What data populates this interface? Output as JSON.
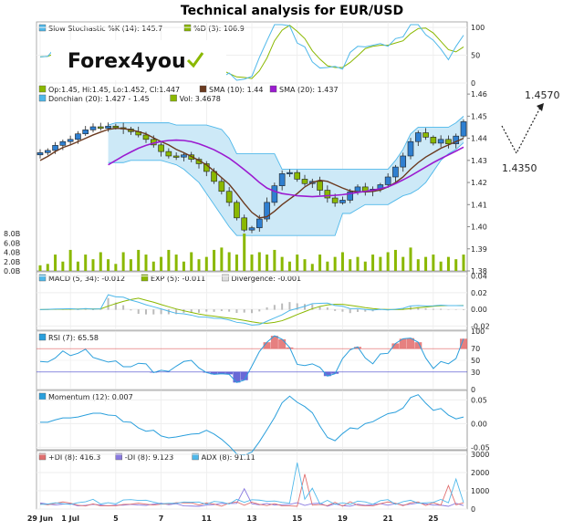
{
  "title": "Technical analysis for EUR/USD",
  "logo_text": "Forex4you",
  "annotation": {
    "high": "1.4570",
    "low": "1.4350"
  },
  "colors": {
    "price": "#8ab800",
    "candle_up": "#2f7fd0",
    "candle_down": "#8ab800",
    "donchian_fill": "#cde9f7",
    "donchian_line": "#4fb8ea",
    "sma10": "#6b3a1f",
    "sma20": "#9b1bd0",
    "volume": "#8ab800",
    "stoch_k": "#4fb8ea",
    "stoch_d": "#8ab800",
    "macd_line": "#4fb8ea",
    "exp_line": "#8ab800",
    "rsi_line": "#2a9fdc",
    "rsi_high": "#e06060",
    "rsi_low": "#4444cc",
    "pdi": "#e07070",
    "mdi": "#8a7ae0",
    "adx": "#4fb8ea"
  },
  "chart_data": [
    {
      "type": "line",
      "panel": "stochastic",
      "legend": [
        "Slow Stochastic %K (14): 145.7",
        "%D (3): 106.9"
      ],
      "y_ticks": [
        "100",
        "50",
        "0"
      ],
      "ylim": [
        0,
        110
      ],
      "series": [
        {
          "name": "Slow Stochastic %K (14)",
          "values": []
        },
        {
          "name": "%D (3)",
          "values": []
        }
      ]
    },
    {
      "type": "bar",
      "panel": "price",
      "legend": [
        "Op:1.45, Hi:1.45, Lo:1.452, Cl:1.447",
        "SMA (10): 1.44",
        "SMA (20): 1.437",
        "Donchian (20): 1.427 - 1.45",
        "Vol: 3.4678"
      ],
      "y_ticks": [
        "1.46",
        "1.45",
        "1.44",
        "1.43",
        "1.42",
        "1.41",
        "1.40",
        "1.39",
        "1.38"
      ],
      "ylim": [
        1.38,
        1.465
      ],
      "vol_ticks": [
        "8.0B",
        "6.0B",
        "4.0B",
        "2.0B",
        "0.0B"
      ],
      "close": [
        1.4335,
        1.4345,
        1.4368,
        1.4385,
        1.4395,
        1.442,
        1.4438,
        1.4452,
        1.4445,
        1.4455,
        1.4448,
        1.4442,
        1.443,
        1.4415,
        1.4395,
        1.437,
        1.434,
        1.432,
        1.4315,
        1.4325,
        1.4305,
        1.4285,
        1.425,
        1.4205,
        1.416,
        1.411,
        1.404,
        1.3985,
        1.3995,
        1.4035,
        1.411,
        1.4185,
        1.424,
        1.4245,
        1.4215,
        1.4195,
        1.4205,
        1.4165,
        1.413,
        1.4108,
        1.412,
        1.4158,
        1.418,
        1.416,
        1.417,
        1.419,
        1.4225,
        1.427,
        1.432,
        1.4385,
        1.4425,
        1.4405,
        1.4378,
        1.4395,
        1.4375,
        1.441,
        1.4475
      ],
      "volume": [
        1.2,
        1.5,
        3.5,
        2.0,
        4.5,
        2.0,
        3.5,
        2.5,
        4.0,
        2.5,
        1.5,
        4.0,
        2.5,
        4.5,
        3.5,
        2.0,
        3.0,
        4.5,
        3.5,
        2.0,
        4.0,
        2.5,
        3.0,
        4.5,
        5.0,
        4.0,
        3.5,
        8.0,
        3.5,
        4.0,
        3.5,
        4.5,
        3.0,
        2.0,
        3.5,
        2.5,
        1.5,
        3.5,
        2.0,
        3.0,
        4.0,
        2.5,
        3.0,
        2.0,
        3.5,
        3.0,
        4.0,
        4.5,
        3.0,
        5.0,
        2.5,
        3.0,
        3.5,
        2.0,
        3.0,
        2.5,
        3.5
      ],
      "sma10": [
        1.43,
        1.4318,
        1.434,
        1.4358,
        1.437,
        1.4385,
        1.44,
        1.4415,
        1.4428,
        1.444,
        1.4445,
        1.4444,
        1.4438,
        1.443,
        1.442,
        1.4402,
        1.4385,
        1.437,
        1.435,
        1.4335,
        1.4318,
        1.43,
        1.428,
        1.4252,
        1.4222,
        1.4192,
        1.415,
        1.4105,
        1.4065,
        1.404,
        1.4045,
        1.407,
        1.41,
        1.4125,
        1.415,
        1.418,
        1.42,
        1.421,
        1.4205,
        1.419,
        1.4175,
        1.4162,
        1.4158,
        1.4157,
        1.416,
        1.4166,
        1.418,
        1.42,
        1.4225,
        1.426,
        1.429,
        1.4315,
        1.4335,
        1.4355,
        1.437,
        1.4385,
        1.44
      ],
      "sma20": [
        null,
        null,
        null,
        null,
        null,
        null,
        null,
        null,
        null,
        1.428,
        1.43,
        1.432,
        1.4338,
        1.4355,
        1.4368,
        1.4378,
        1.4385,
        1.439,
        1.4392,
        1.439,
        1.4385,
        1.4375,
        1.4362,
        1.4348,
        1.433,
        1.431,
        1.4285,
        1.4258,
        1.423,
        1.42,
        1.4175,
        1.416,
        1.415,
        1.4145,
        1.414,
        1.4138,
        1.4136,
        1.4138,
        1.414,
        1.4142,
        1.4145,
        1.415,
        1.4155,
        1.416,
        1.4165,
        1.4172,
        1.418,
        1.4195,
        1.4212,
        1.423,
        1.425,
        1.427,
        1.429,
        1.4308,
        1.4325,
        1.4342,
        1.436
      ],
      "donchian_upper": [
        null,
        null,
        null,
        null,
        null,
        null,
        null,
        null,
        null,
        1.446,
        1.447,
        1.447,
        1.447,
        1.447,
        1.447,
        1.447,
        1.447,
        1.447,
        1.446,
        1.446,
        1.446,
        1.446,
        1.446,
        1.445,
        1.444,
        1.44,
        1.433,
        1.433,
        1.433,
        1.433,
        1.433,
        1.433,
        1.426,
        1.426,
        1.426,
        1.426,
        1.426,
        1.426,
        1.426,
        1.426,
        1.426,
        1.426,
        1.426,
        1.426,
        1.426,
        1.426,
        1.426,
        1.43,
        1.435,
        1.442,
        1.445,
        1.445,
        1.445,
        1.445,
        1.445,
        1.447,
        1.45
      ],
      "donchian_lower": [
        null,
        null,
        null,
        null,
        null,
        null,
        null,
        null,
        null,
        1.429,
        1.429,
        1.429,
        1.43,
        1.43,
        1.43,
        1.43,
        1.43,
        1.429,
        1.428,
        1.426,
        1.423,
        1.42,
        1.415,
        1.41,
        1.405,
        1.4,
        1.396,
        1.396,
        1.396,
        1.396,
        1.396,
        1.396,
        1.396,
        1.396,
        1.396,
        1.396,
        1.396,
        1.396,
        1.396,
        1.396,
        1.406,
        1.406,
        1.408,
        1.41,
        1.41,
        1.41,
        1.41,
        1.412,
        1.414,
        1.415,
        1.417,
        1.42,
        1.425,
        1.43,
        1.433,
        1.435,
        1.438
      ]
    },
    {
      "type": "line",
      "panel": "macd",
      "legend": [
        "MACD (5, 34): -0.012",
        "EXP (5): -0.011",
        "Divergence: -0.001"
      ],
      "y_ticks": [
        "0.04",
        "0.02",
        "0.00",
        "-0.02"
      ],
      "ylim": [
        -0.025,
        0.045
      ],
      "series": [
        {
          "name": "MACD (5, 34)",
          "values": []
        },
        {
          "name": "EXP (5)",
          "values": []
        }
      ]
    },
    {
      "type": "line",
      "panel": "rsi",
      "legend": [
        "RSI (7): 65.58"
      ],
      "y_ticks": [
        "100",
        "70",
        "50",
        "30",
        "0"
      ],
      "ylim": [
        0,
        100
      ],
      "series": [
        {
          "name": "RSI (7)",
          "values": []
        }
      ]
    },
    {
      "type": "line",
      "panel": "momentum",
      "legend": [
        "Momentum (12): 0.007"
      ],
      "y_ticks": [
        "0.05",
        "0.00",
        "-0.05"
      ],
      "ylim": [
        -0.055,
        0.07
      ],
      "series": [
        {
          "name": "Momentum (12)",
          "values": []
        }
      ]
    },
    {
      "type": "line",
      "panel": "dmi",
      "legend": [
        "+DI (8): 416.3",
        "-DI (8): 9.123",
        "ADX (8): 91.11"
      ],
      "y_ticks": [
        "3000",
        "2000",
        "1000",
        "0"
      ],
      "ylim": [
        0,
        3200
      ],
      "series": [
        {
          "name": "+DI (8)",
          "values": []
        },
        {
          "name": "-DI (8)",
          "values": []
        },
        {
          "name": "ADX (8)",
          "values": []
        }
      ]
    }
  ],
  "x_labels": [
    "29 Jun",
    "1 Jul",
    "5",
    "7",
    "11",
    "13",
    "15",
    "19",
    "21",
    "25"
  ]
}
